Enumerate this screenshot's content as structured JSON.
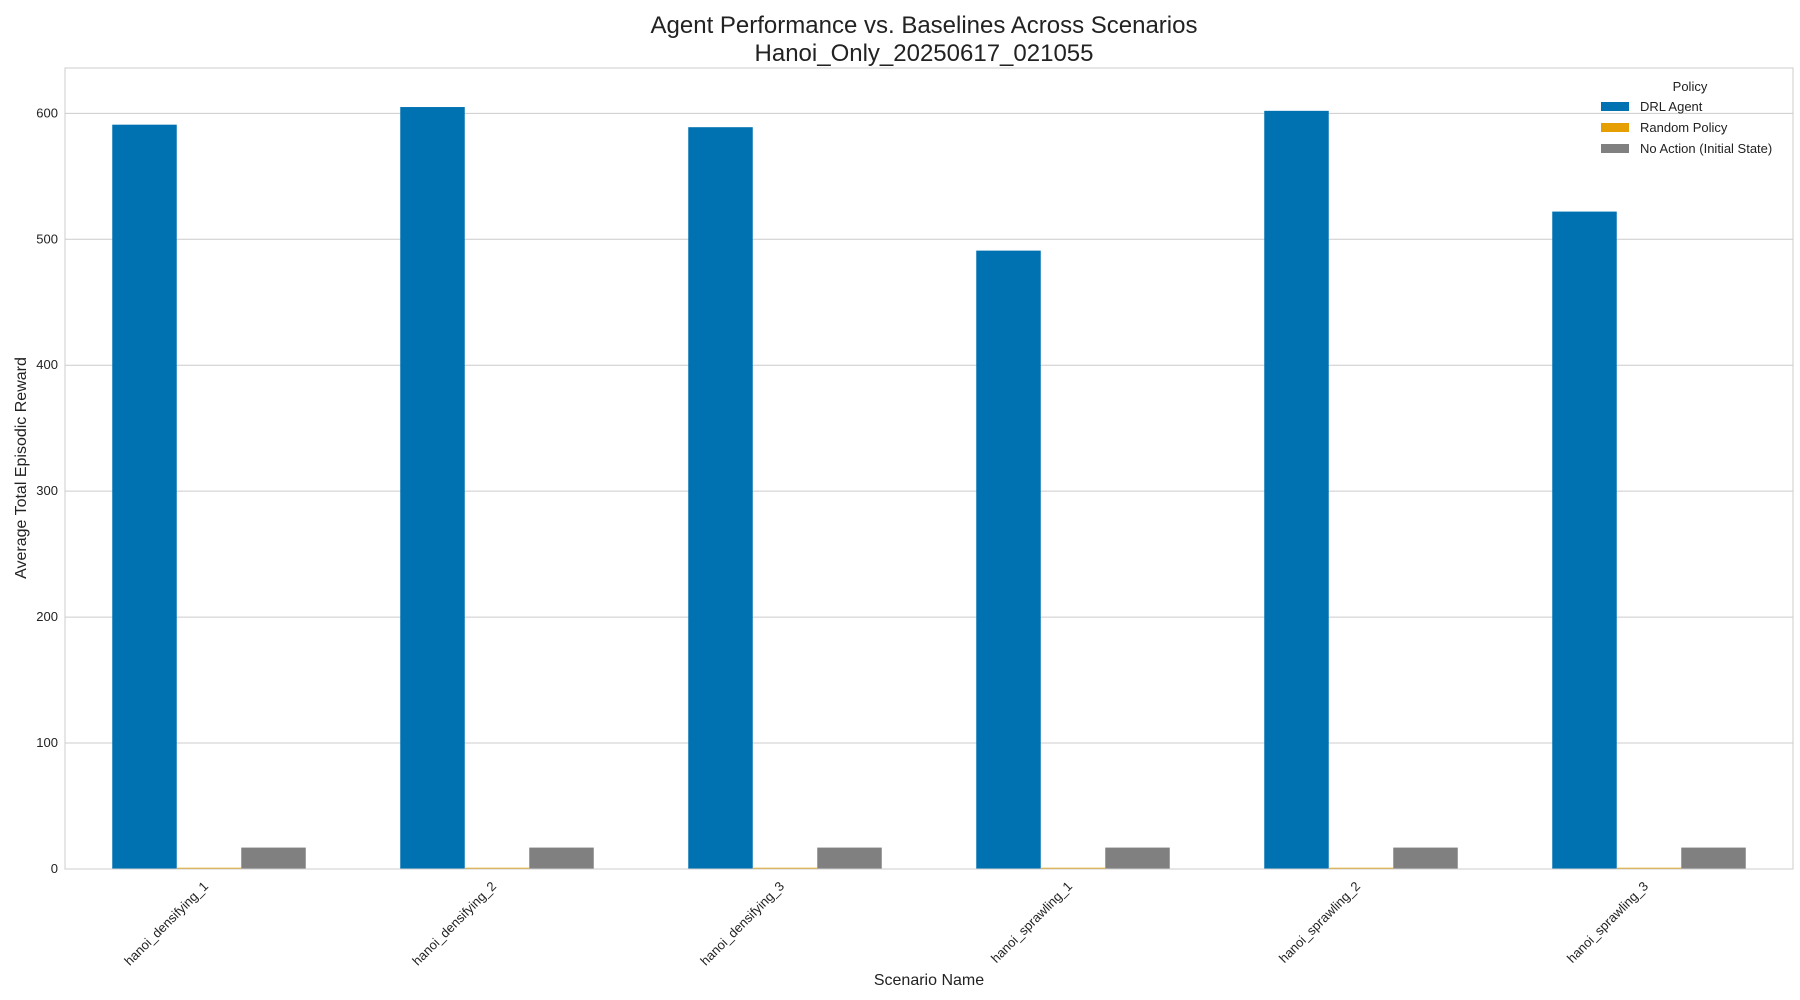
{
  "chart_data": {
    "type": "bar",
    "title_line1": "Agent Performance vs. Baselines Across Scenarios",
    "title_line2": "Hanoi_Only_20250617_021055",
    "xlabel": "Scenario Name",
    "ylabel": "Average Total Episodic Reward",
    "ylim": [
      0,
      636
    ],
    "yticks": [
      0,
      100,
      200,
      300,
      400,
      500,
      600
    ],
    "grid": true,
    "legend": {
      "title": "Policy",
      "placement": "top-right"
    },
    "categories": [
      "hanoi_densifying_1",
      "hanoi_densifying_2",
      "hanoi_densifying_3",
      "hanoi_sprawling_1",
      "hanoi_sprawling_2",
      "hanoi_sprawling_3"
    ],
    "series": [
      {
        "name": "DRL Agent",
        "color": "#0072b2",
        "values": [
          591,
          605,
          589,
          491,
          602,
          522
        ]
      },
      {
        "name": "Random Policy",
        "color": "#e69f00",
        "values": [
          1,
          1,
          1,
          1,
          1,
          1
        ]
      },
      {
        "name": "No Action (Initial State)",
        "color": "#808080",
        "values": [
          17,
          17,
          17,
          17,
          17,
          17
        ]
      }
    ]
  }
}
